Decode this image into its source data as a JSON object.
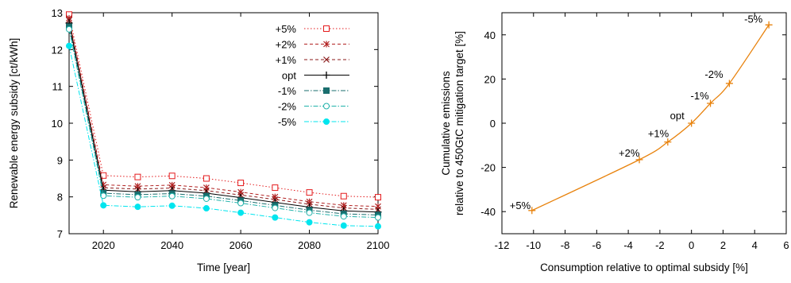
{
  "chart_data": [
    {
      "type": "line",
      "xlabel": "Time [year]",
      "ylabel": "Renewable energy subsidy [ct/kWh]",
      "xlim": [
        2010,
        2100
      ],
      "ylim": [
        7,
        13
      ],
      "xticks": [
        2020,
        2040,
        2060,
        2080,
        2100
      ],
      "yticks": [
        7,
        8,
        9,
        10,
        11,
        12,
        13
      ],
      "legend_position": "top-right",
      "x": [
        2010,
        2020,
        2030,
        2040,
        2050,
        2060,
        2070,
        2080,
        2090,
        2100
      ],
      "series": [
        {
          "name": "+5%",
          "color": "#e41a1c",
          "marker": "open-square",
          "dash": "dotted",
          "values": [
            12.95,
            8.58,
            8.54,
            8.57,
            8.5,
            8.38,
            8.25,
            8.12,
            8.02,
            7.99
          ]
        },
        {
          "name": "+2%",
          "color": "#b22222",
          "marker": "star",
          "dash": "dashed",
          "values": [
            12.85,
            8.33,
            8.29,
            8.32,
            8.25,
            8.13,
            8.0,
            7.87,
            7.77,
            7.74
          ]
        },
        {
          "name": "+1%",
          "color": "#8b1a1a",
          "marker": "x",
          "dash": "dashed",
          "values": [
            12.8,
            8.25,
            8.21,
            8.24,
            8.17,
            8.05,
            7.93,
            7.8,
            7.7,
            7.66
          ]
        },
        {
          "name": "opt",
          "color": "#000000",
          "marker": "plus",
          "dash": "solid",
          "values": [
            12.72,
            8.18,
            8.14,
            8.17,
            8.1,
            7.98,
            7.85,
            7.72,
            7.62,
            7.59
          ]
        },
        {
          "name": "-1%",
          "color": "#1a6e6e",
          "marker": "filled-square",
          "dash": "dashdot",
          "values": [
            12.62,
            8.1,
            8.06,
            8.09,
            8.02,
            7.9,
            7.77,
            7.64,
            7.54,
            7.51
          ]
        },
        {
          "name": "-2%",
          "color": "#20b2aa",
          "marker": "open-circle",
          "dash": "dashdot",
          "values": [
            12.55,
            8.03,
            7.99,
            8.02,
            7.95,
            7.83,
            7.7,
            7.57,
            7.47,
            7.44
          ]
        },
        {
          "name": "-5%",
          "color": "#00e5ee",
          "marker": "filled-circle",
          "dash": "dashdot",
          "values": [
            12.1,
            7.77,
            7.73,
            7.76,
            7.69,
            7.57,
            7.44,
            7.31,
            7.22,
            7.2
          ]
        }
      ]
    },
    {
      "type": "line",
      "xlabel": "Consumption relative to optimal subsidy [%]",
      "ylabel": [
        "Cumulative emissions",
        "relative to 450GtC mitigation target [%]"
      ],
      "xlim": [
        -12,
        6
      ],
      "ylim": [
        -50,
        50
      ],
      "xticks": [
        -12,
        -10,
        -8,
        -6,
        -4,
        -2,
        0,
        2,
        4,
        6
      ],
      "yticks": [
        -40,
        -20,
        0,
        20,
        40
      ],
      "color": "#e8820c",
      "marker": "plus",
      "points": [
        {
          "label": "+5%",
          "x": -10.1,
          "y": -39.5
        },
        {
          "label": "+2%",
          "x": -3.3,
          "y": -16.5
        },
        {
          "label": "+1%",
          "x": -1.5,
          "y": -8.5
        },
        {
          "label": "opt",
          "x": 0.0,
          "y": 0.0
        },
        {
          "label": "-1%",
          "x": 1.2,
          "y": 9.0
        },
        {
          "label": "-2%",
          "x": 2.4,
          "y": 18.0
        },
        {
          "label": "-5%",
          "x": 4.9,
          "y": 44.5
        }
      ]
    }
  ]
}
